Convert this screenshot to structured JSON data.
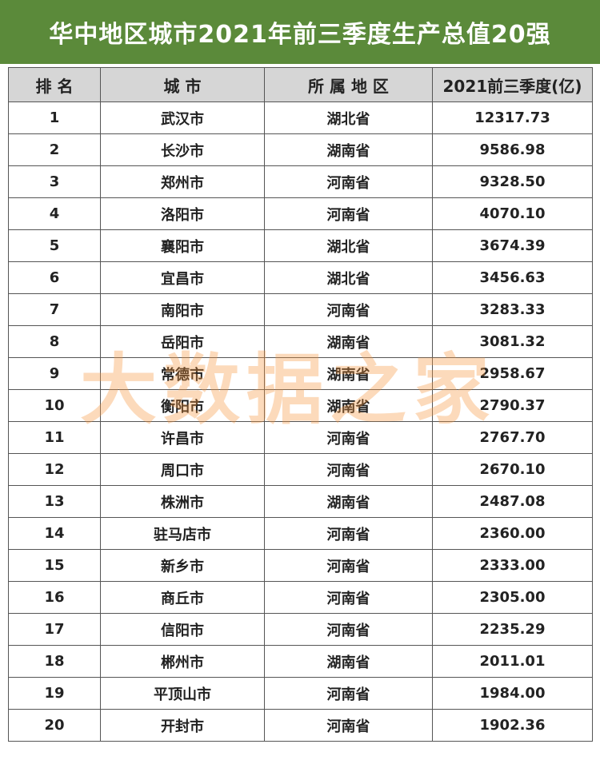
{
  "header": {
    "title": "华中地区城市2021年前三季度生产总值20强"
  },
  "table": {
    "columns": [
      "排 名",
      "城 市",
      "所 属 地 区",
      "2021前三季度(亿)"
    ],
    "rows": [
      [
        "1",
        "武汉市",
        "湖北省",
        "12317.73"
      ],
      [
        "2",
        "长沙市",
        "湖南省",
        "9586.98"
      ],
      [
        "3",
        "郑州市",
        "河南省",
        "9328.50"
      ],
      [
        "4",
        "洛阳市",
        "河南省",
        "4070.10"
      ],
      [
        "5",
        "襄阳市",
        "湖北省",
        "3674.39"
      ],
      [
        "6",
        "宜昌市",
        "湖北省",
        "3456.63"
      ],
      [
        "7",
        "南阳市",
        "河南省",
        "3283.33"
      ],
      [
        "8",
        "岳阳市",
        "湖南省",
        "3081.32"
      ],
      [
        "9",
        "常德市",
        "湖南省",
        "2958.67"
      ],
      [
        "10",
        "衡阳市",
        "湖南省",
        "2790.37"
      ],
      [
        "11",
        "许昌市",
        "河南省",
        "2767.70"
      ],
      [
        "12",
        "周口市",
        "河南省",
        "2670.10"
      ],
      [
        "13",
        "株洲市",
        "湖南省",
        "2487.08"
      ],
      [
        "14",
        "驻马店市",
        "河南省",
        "2360.00"
      ],
      [
        "15",
        "新乡市",
        "河南省",
        "2333.00"
      ],
      [
        "16",
        "商丘市",
        "河南省",
        "2305.00"
      ],
      [
        "17",
        "信阳市",
        "河南省",
        "2235.29"
      ],
      [
        "18",
        "郴州市",
        "湖南省",
        "2011.01"
      ],
      [
        "19",
        "平顶山市",
        "河南省",
        "1984.00"
      ],
      [
        "20",
        "开封市",
        "河南省",
        "1902.36"
      ]
    ]
  },
  "watermark": "大数据之家"
}
